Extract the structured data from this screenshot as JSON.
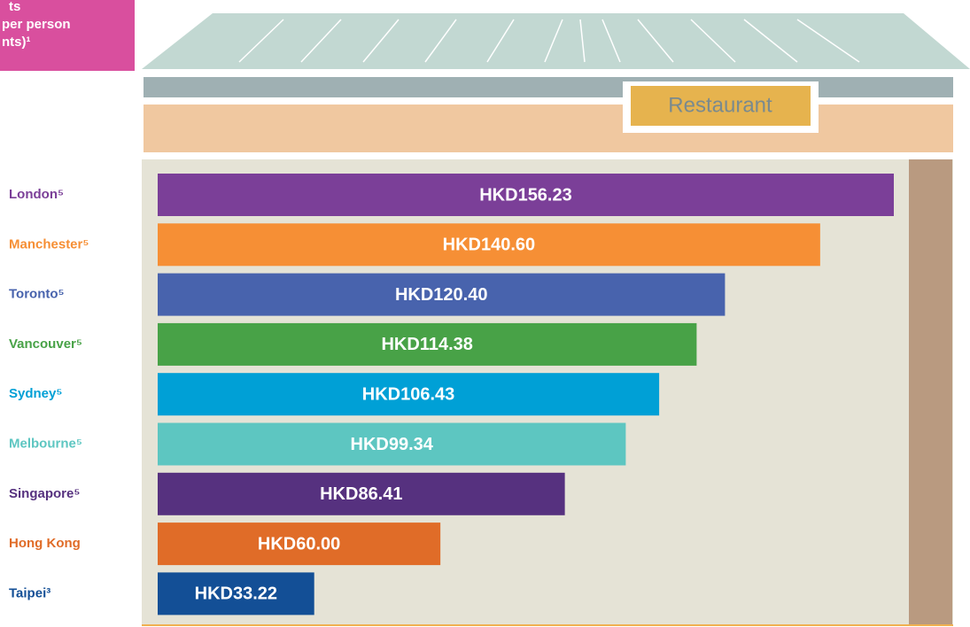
{
  "note_box": {
    "lines": [
      "ts",
      "per person",
      "nts)¹"
    ]
  },
  "sign": "Restaurant",
  "chart_data": {
    "type": "bar",
    "orientation": "horizontal",
    "categories": [
      "London⁵",
      "Manchester⁵",
      "Toronto⁵",
      "Vancouver⁵",
      "Sydney⁵",
      "Melbourne⁵",
      "Singapore⁵",
      "Hong Kong",
      "Taipei³"
    ],
    "values": [
      156.23,
      140.6,
      120.4,
      114.38,
      106.43,
      99.34,
      86.41,
      60.0,
      33.22
    ],
    "value_labels": [
      "HKD156.23",
      "HKD140.60",
      "HKD120.40",
      "HKD114.38",
      "HKD106.43",
      "HKD99.34",
      "HKD86.41",
      "HKD60.00",
      "HKD33.22"
    ],
    "colors": [
      "#7b3f98",
      "#f68f35",
      "#4863ad",
      "#48a247",
      "#00a0d6",
      "#5dc6c1",
      "#56317f",
      "#e06c28",
      "#134f96"
    ]
  }
}
